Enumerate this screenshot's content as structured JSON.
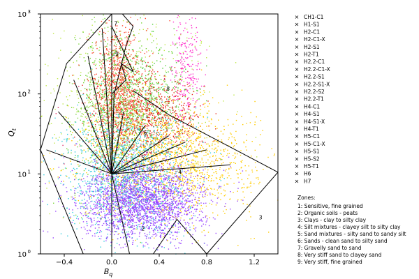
{
  "chart_data": {
    "type": "scatter",
    "xlabel": "B_q",
    "ylabel": "Q_t",
    "xlim": [
      -0.6,
      1.4
    ],
    "ylim": [
      1,
      1000
    ],
    "y_scale": "log",
    "x_ticks": [
      -0.4,
      0.0,
      0.4,
      0.8,
      1.2
    ],
    "x_tick_labels": [
      "−0.4",
      "0.0",
      "0.4",
      "0.8",
      "1.2"
    ],
    "y_ticks": [
      1,
      10,
      100,
      1000
    ],
    "y_tick_labels": [
      "10",
      "10",
      "10",
      "10"
    ],
    "y_tick_exponents": [
      "0",
      "1",
      "2",
      "3"
    ],
    "grid": false,
    "legend_position": "outside-right",
    "series": [
      {
        "name": "CH1-C1",
        "color": "#ff33cc"
      },
      {
        "name": "H1-S1",
        "color": "#bfe84a"
      },
      {
        "name": "H2-C1",
        "color": "#7bd63a"
      },
      {
        "name": "H2-C1-X",
        "color": "#4ccc33"
      },
      {
        "name": "H2-S1",
        "color": "#33cc4d"
      },
      {
        "name": "H2-T1",
        "color": "#33cc66"
      },
      {
        "name": "H2.2-C1",
        "color": "#ff4a33"
      },
      {
        "name": "H2.2-C1-X",
        "color": "#f24026"
      },
      {
        "name": "H2.2-S1",
        "color": "#e63322"
      },
      {
        "name": "H2.2-S1-X",
        "color": "#ff5533"
      },
      {
        "name": "H2.2-S2",
        "color": "#ee3a2a"
      },
      {
        "name": "H2.2-T1",
        "color": "#e62e1e"
      },
      {
        "name": "H4-C1",
        "color": "#ffcc00"
      },
      {
        "name": "H4-S1",
        "color": "#ffd21a"
      },
      {
        "name": "H4-S1-X",
        "color": "#f7c800"
      },
      {
        "name": "H4-T1",
        "color": "#ffd700"
      },
      {
        "name": "H5-C1",
        "color": "#33ccdd"
      },
      {
        "name": "H5-C1-X",
        "color": "#22c4e0"
      },
      {
        "name": "H5-S1",
        "color": "#3ad0e6"
      },
      {
        "name": "H5-S2",
        "color": "#26c8dc"
      },
      {
        "name": "H5-T1",
        "color": "#2ed4e8"
      },
      {
        "name": "H6",
        "color": "#9944ff"
      },
      {
        "name": "H7",
        "color": "#e0336e"
      }
    ],
    "zone_labels": [
      {
        "text": "2",
        "x": 0.25,
        "y": 1.95
      },
      {
        "text": "7",
        "x": 0.02,
        "y": 720
      },
      {
        "text": "3",
        "x": 1.24,
        "y": 2.7
      },
      {
        "text": "9",
        "x": 0.03,
        "y": 300
      },
      {
        "text": "6",
        "x": 0.27,
        "y": 31
      },
      {
        "text": "5",
        "x": 0.25,
        "y": 15
      },
      {
        "text": "4",
        "x": 0.56,
        "y": 10
      },
      {
        "text": "8",
        "x": 0.46,
        "y": 110
      }
    ],
    "boundaries": [
      [
        [
          -0.24,
          1
        ],
        [
          -0.6,
          20
        ],
        [
          -0.38,
          240
        ],
        [
          0.0,
          1000
        ]
      ],
      [
        [
          0.0,
          1000
        ],
        [
          0.09,
          1000
        ],
        [
          0.18,
          700
        ],
        [
          0.12,
          400
        ],
        [
          0.02,
          100
        ],
        [
          0.0,
          10
        ]
      ],
      [
        [
          0.15,
          1
        ],
        [
          0.0,
          10
        ]
      ],
      [
        [
          0.0,
          100
        ],
        [
          0.12,
          150
        ],
        [
          0.08,
          240
        ],
        [
          0.18,
          190
        ],
        [
          0.0,
          700
        ]
      ],
      [
        [
          0.0,
          10
        ],
        [
          -0.55,
          20
        ]
      ],
      [
        [
          0.0,
          10
        ],
        [
          -0.45,
          60
        ]
      ],
      [
        [
          0.0,
          10
        ],
        [
          -0.32,
          150
        ]
      ],
      [
        [
          0.0,
          10
        ],
        [
          -0.2,
          300
        ]
      ],
      [
        [
          0.0,
          10
        ],
        [
          -0.08,
          650
        ]
      ],
      [
        [
          0.0,
          10
        ],
        [
          0.1,
          60
        ]
      ],
      [
        [
          0.0,
          10
        ],
        [
          0.28,
          40
        ]
      ],
      [
        [
          0.0,
          10
        ],
        [
          0.48,
          30
        ]
      ],
      [
        [
          0.0,
          10
        ],
        [
          0.62,
          25
        ]
      ],
      [
        [
          0.0,
          10
        ],
        [
          0.8,
          20
        ]
      ],
      [
        [
          0.0,
          10
        ],
        [
          1.0,
          13
        ]
      ],
      [
        [
          0.18,
          110
        ],
        [
          0.48,
          55
        ],
        [
          1.4,
          10.5
        ]
      ],
      [
        [
          1.4,
          10.5
        ],
        [
          0.8,
          1
        ]
      ],
      [
        [
          0.8,
          1
        ],
        [
          0.55,
          2.7
        ],
        [
          0.35,
          1
        ]
      ]
    ],
    "clusters": [
      {
        "color": "#bfe84a",
        "n": 500,
        "cx": 0.1,
        "cy": 1.9,
        "sx": 0.4,
        "sy": 0.6
      },
      {
        "color": "#7bd63a",
        "n": 900,
        "cx": 0.02,
        "cy": 1.8,
        "sx": 0.16,
        "sy": 0.55
      },
      {
        "color": "#4ccc33",
        "n": 600,
        "cx": 0.22,
        "cy": 1.95,
        "sx": 0.2,
        "sy": 0.35
      },
      {
        "color": "#ff4a33",
        "n": 900,
        "cx": 0.05,
        "cy": 2.05,
        "sx": 0.12,
        "sy": 0.4
      },
      {
        "color": "#e62e1e",
        "n": 700,
        "cx": 0.35,
        "cy": 1.7,
        "sx": 0.2,
        "sy": 0.25
      },
      {
        "color": "#ffcc00",
        "n": 1500,
        "cx": 0.5,
        "cy": 1.15,
        "sx": 0.35,
        "sy": 0.35
      },
      {
        "color": "#33ccdd",
        "n": 1400,
        "cx": 0.12,
        "cy": 0.98,
        "sx": 0.25,
        "sy": 0.4
      },
      {
        "color": "#9944ff",
        "n": 2200,
        "cx": 0.26,
        "cy": 0.65,
        "sx": 0.26,
        "sy": 0.23
      },
      {
        "color": "#ff33cc",
        "n": 220,
        "cx": 0.63,
        "cy": 2.4,
        "sx": 0.06,
        "sy": 0.35
      },
      {
        "color": "#e0336e",
        "n": 80,
        "cx": 0.2,
        "cy": 1.5,
        "sx": 0.3,
        "sy": 0.4
      }
    ],
    "zones_legend": {
      "title": "Zones:",
      "items": [
        "1: Sensitive, fine grained",
        "2: Organic soils - peats",
        "3: Clays - clay to silty clay",
        "4: Silt mixtures - clayey silt to silty clay",
        "5: Sand mixtures - silty sand to sandy silt",
        "6: Sands - clean sand to silty sand",
        "7: Gravelly sand to sand",
        "8: Very stiff sand to clayey sand",
        "9: Very stiff, fine grained"
      ]
    }
  }
}
